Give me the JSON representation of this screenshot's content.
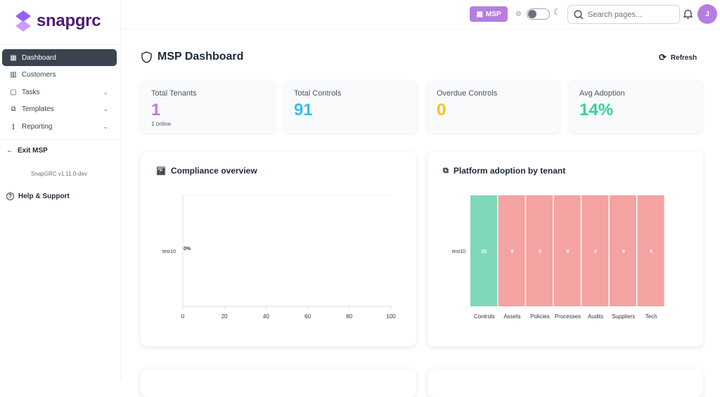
{
  "brand": {
    "name": "snapgrc",
    "accent": "#b57ee0"
  },
  "sidebar": {
    "items": [
      {
        "label": "Dashboard",
        "icon": "grid-icon",
        "active": true
      },
      {
        "label": "Customers",
        "icon": "building-icon"
      },
      {
        "label": "Tasks",
        "icon": "clipboard-icon",
        "expandable": true
      },
      {
        "label": "Templates",
        "icon": "copy-icon",
        "expandable": true
      },
      {
        "label": "Reporting",
        "icon": "bar-chart-icon",
        "expandable": true
      }
    ],
    "exit_label": "Exit MSP",
    "version": "SnapGRC v1.11.0-dev",
    "help_label": "Help & Support"
  },
  "header": {
    "msp_label": "MSP",
    "search_placeholder": "Search pages...",
    "avatar_initial": "J",
    "theme": "light"
  },
  "page": {
    "title": "MSP Dashboard",
    "refresh_label": "Refresh"
  },
  "stats": [
    {
      "label": "Total Tenants",
      "value": "1",
      "sub": "1 online",
      "color": "#b57ee0"
    },
    {
      "label": "Total Controls",
      "value": "91",
      "color": "#38bdf8"
    },
    {
      "label": "Overdue Controls",
      "value": "0",
      "color": "#fbbf24"
    },
    {
      "label": "Avg Adoption",
      "value": "14%",
      "color": "#34d399"
    }
  ],
  "compliance": {
    "title": "Compliance overview",
    "chart_data": {
      "type": "bar",
      "orientation": "horizontal",
      "categories": [
        "test10"
      ],
      "values": [
        0
      ],
      "data_labels": [
        "0%"
      ],
      "xlim": [
        0,
        100
      ],
      "xticks": [
        "0",
        "20",
        "40",
        "60",
        "80",
        "100"
      ]
    }
  },
  "adoption": {
    "title": "Platform adoption by tenant",
    "chart_data": {
      "type": "heatmap",
      "rows": [
        "test10"
      ],
      "columns": [
        "Controls",
        "Assets",
        "Policies",
        "Processes",
        "Audits",
        "Suppliers",
        "Tech"
      ],
      "values": [
        [
          91,
          0,
          0,
          0,
          0,
          0,
          0
        ]
      ],
      "colors": {
        "positive": "#7fd8b8",
        "zero": "#f4a2a2"
      }
    }
  }
}
